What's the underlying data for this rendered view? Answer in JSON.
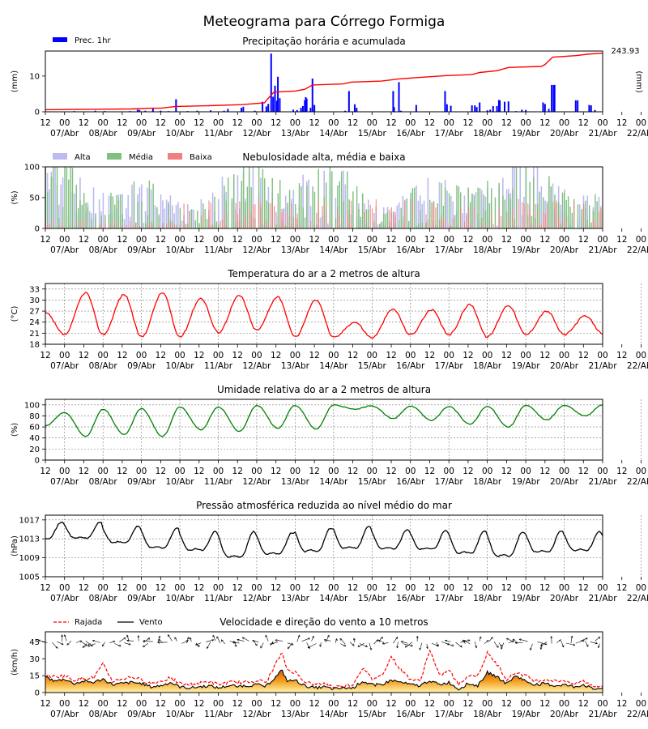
{
  "title": "Meteograma para Córrego Formiga",
  "time_axis": {
    "hour_ticks": [
      "12",
      "00",
      "12",
      "00",
      "12",
      "00",
      "12",
      "00",
      "12",
      "00",
      "12",
      "00",
      "12",
      "00",
      "12",
      "00",
      "12",
      "00",
      "12",
      "00",
      "12",
      "00",
      "12",
      "00",
      "12",
      "00",
      "12",
      "00",
      "12",
      "00",
      "12",
      "00"
    ],
    "day_labels": [
      "07/Abr",
      "08/Abr",
      "09/Abr",
      "10/Abr",
      "11/Abr",
      "12/Abr",
      "13/Abr",
      "14/Abr",
      "15/Abr",
      "16/Abr",
      "17/Abr",
      "18/Abr",
      "19/Abr",
      "20/Abr",
      "21/Abr",
      "22/Abr"
    ]
  },
  "chart_data": [
    {
      "type": "bar",
      "title": "Precipitação horária e acumulada",
      "ylabel": "(mm)",
      "ylabel_right": "(mm)",
      "ylim": [
        0,
        17
      ],
      "yticks": [
        "0",
        "10"
      ],
      "legend": [
        "Prec. 1hr"
      ],
      "legend_placement": "top-left",
      "accumulated_total": "243.93",
      "colors": {
        "bars": "#0000ff",
        "accumulated": "#ff0000"
      },
      "bars": [
        [
          0.5,
          0.1
        ],
        [
          1.5,
          0.2
        ],
        [
          2.1,
          0.1
        ],
        [
          2.6,
          0.3
        ],
        [
          3.1,
          0.2
        ],
        [
          4.4,
          0.2
        ],
        [
          4.8,
          0.6
        ],
        [
          4.9,
          0.5
        ],
        [
          5.2,
          0.3
        ],
        [
          5.6,
          0.9
        ],
        [
          6.0,
          0.3
        ],
        [
          6.4,
          0.2
        ],
        [
          6.8,
          3.5
        ],
        [
          7.4,
          0.2
        ],
        [
          7.9,
          0.3
        ],
        [
          8.6,
          0.4
        ],
        [
          9.3,
          0.3
        ],
        [
          9.5,
          0.8
        ],
        [
          10.2,
          1.1
        ],
        [
          10.3,
          1.4
        ],
        [
          10.9,
          0.3
        ],
        [
          11.3,
          2.8
        ],
        [
          11.5,
          1.5
        ],
        [
          11.6,
          2.2
        ],
        [
          11.75,
          16.3
        ],
        [
          11.85,
          4.2
        ],
        [
          11.95,
          7.3
        ],
        [
          12.05,
          3.1
        ],
        [
          12.1,
          9.8
        ],
        [
          12.2,
          3.8
        ],
        [
          12.9,
          0.6
        ],
        [
          13.1,
          0.5
        ],
        [
          13.3,
          1.1
        ],
        [
          13.4,
          1.6
        ],
        [
          13.5,
          3.2
        ],
        [
          13.55,
          4.1
        ],
        [
          13.6,
          3.7
        ],
        [
          13.8,
          1.1
        ],
        [
          13.9,
          9.3
        ],
        [
          14.0,
          1.9
        ],
        [
          15.6,
          0.3
        ],
        [
          15.8,
          5.8
        ],
        [
          16.1,
          2.1
        ],
        [
          16.2,
          1.1
        ],
        [
          18.1,
          5.8
        ],
        [
          18.15,
          1.3
        ],
        [
          18.4,
          8.3
        ],
        [
          18.5,
          0.3
        ],
        [
          19.3,
          1.9
        ],
        [
          20.8,
          5.8
        ],
        [
          20.9,
          2.1
        ],
        [
          21.1,
          1.7
        ],
        [
          22.2,
          1.8
        ],
        [
          22.35,
          1.8
        ],
        [
          22.45,
          1.3
        ],
        [
          22.6,
          2.6
        ],
        [
          23.0,
          0.4
        ],
        [
          23.15,
          0.6
        ],
        [
          23.3,
          1.6
        ],
        [
          23.5,
          1.6
        ],
        [
          23.6,
          3.3
        ],
        [
          23.65,
          3.2
        ],
        [
          23.9,
          2.8
        ],
        [
          24.1,
          2.9
        ],
        [
          24.5,
          0.2
        ],
        [
          24.8,
          0.6
        ],
        [
          25.0,
          0.5
        ],
        [
          25.9,
          2.6
        ],
        [
          26.0,
          2.2
        ],
        [
          26.2,
          0.8
        ],
        [
          26.35,
          7.5
        ],
        [
          26.45,
          7.5
        ],
        [
          26.5,
          7.5
        ],
        [
          27.6,
          3.2
        ],
        [
          27.7,
          3.2
        ],
        [
          28.3,
          1.9
        ],
        [
          28.4,
          1.8
        ],
        [
          28.6,
          0.5
        ]
      ],
      "accumulated": [
        [
          0,
          0.6
        ],
        [
          4.5,
          0.8
        ],
        [
          5.5,
          1.0
        ],
        [
          6.0,
          1.0
        ],
        [
          6.8,
          1.5
        ],
        [
          8.5,
          1.7
        ],
        [
          10.2,
          2.0
        ],
        [
          11.4,
          2.5
        ],
        [
          11.7,
          4.4
        ],
        [
          11.9,
          5.5
        ],
        [
          13.0,
          5.8
        ],
        [
          13.5,
          6.3
        ],
        [
          13.9,
          7.5
        ],
        [
          15.5,
          7.8
        ],
        [
          15.9,
          8.3
        ],
        [
          17.5,
          8.6
        ],
        [
          18.4,
          9.2
        ],
        [
          19.5,
          9.6
        ],
        [
          20.8,
          10.1
        ],
        [
          22.2,
          10.4
        ],
        [
          22.6,
          11.0
        ],
        [
          23.5,
          11.5
        ],
        [
          24.1,
          12.4
        ],
        [
          25.8,
          12.7
        ],
        [
          26.0,
          13.2
        ],
        [
          26.4,
          15.3
        ],
        [
          27.6,
          15.7
        ],
        [
          28.2,
          16.1
        ],
        [
          29,
          16.4
        ]
      ]
    },
    {
      "type": "bar",
      "title": "Nebulosidade alta, média e baixa",
      "ylabel": "(%)",
      "ylim": [
        0,
        100
      ],
      "yticks": [
        "0",
        "50",
        "100"
      ],
      "series": [
        {
          "name": "Alta",
          "color": "#bbbbf0"
        },
        {
          "name": "Média",
          "color": "#7fbf7f"
        },
        {
          "name": "Baixa",
          "color": "#f08080"
        }
      ],
      "legend_placement": "top-left"
    },
    {
      "type": "line",
      "title": "Temperatura do ar a 2 metros de altura",
      "ylabel": "(°C)",
      "ylim": [
        18,
        34.5
      ],
      "yticks": [
        "18",
        "21",
        "24",
        "27",
        "30",
        "33"
      ],
      "color": "#ff0000",
      "days": 15,
      "daily_min": [
        20.6,
        20.6,
        20.0,
        20.0,
        21.2,
        21.8,
        20.0,
        19.8,
        19.8,
        20.6,
        20.6,
        20.0,
        20.6,
        20.6,
        21.0
      ],
      "daily_max": [
        32.0,
        31.5,
        32.0,
        30.5,
        31.2,
        30.9,
        30.1,
        24.0,
        27.5,
        27.3,
        28.8,
        28.6,
        27.0,
        25.6,
        27.5
      ],
      "start": 26.5
    },
    {
      "type": "line",
      "title": "Umidade relativa do ar a 2 metros de altura",
      "ylabel": "(%)",
      "ylim": [
        0,
        110
      ],
      "yticks": [
        "0",
        "20",
        "40",
        "60",
        "80",
        "100"
      ],
      "color": "#008000",
      "days": 15,
      "daily_min": [
        43,
        46,
        43,
        55,
        52,
        58,
        56,
        92,
        75,
        72,
        65,
        60,
        73,
        80,
        72
      ],
      "daily_max": [
        86,
        92,
        93,
        96,
        96,
        99,
        99,
        100,
        98,
        98,
        97,
        97,
        99,
        99,
        100
      ],
      "start": 62
    },
    {
      "type": "line",
      "title": "Pressão atmosférica reduzida ao nível médio do mar",
      "ylabel": "(hPa)",
      "ylim": [
        1005,
        1018
      ],
      "yticks": [
        "1005",
        "1009",
        "1013",
        "1017"
      ],
      "color": "#000000",
      "days": 15,
      "daily_min": [
        1012.0,
        1011.0,
        1009.7,
        1009.3,
        1007.3,
        1008.3,
        1008.7,
        1009.5,
        1009.6,
        1009.5,
        1008.3,
        1007.6,
        1008.7,
        1009.2,
        1007.6
      ],
      "daily_max": [
        1016.5,
        1015.7,
        1015.3,
        1014.5,
        1014.5,
        1014.3,
        1015.2,
        1015.7,
        1015.0,
        1014.8,
        1014.7,
        1014.5,
        1014.7,
        1014.5,
        1014.5
      ],
      "start": 1016.7
    },
    {
      "type": "area",
      "title": "Velocidade e direção do vento a 10 metros",
      "ylabel": "(km/h)",
      "ylim": [
        0,
        54
      ],
      "yticks": [
        "0",
        "15",
        "30",
        "45"
      ],
      "series": [
        {
          "name": "Rajada",
          "color": "#ff0000"
        },
        {
          "name": "Vento",
          "color": "#000000"
        }
      ],
      "legend_placement": "top-left",
      "wind_nodes": [
        [
          0,
          14
        ],
        [
          0.5,
          10
        ],
        [
          1.0,
          12
        ],
        [
          1.5,
          8
        ],
        [
          2.0,
          10
        ],
        [
          2.5,
          9
        ],
        [
          3.0,
          12
        ],
        [
          3.5,
          7
        ],
        [
          4.0,
          8
        ],
        [
          4.5,
          9
        ],
        [
          5.0,
          8
        ],
        [
          5.5,
          5
        ],
        [
          6.0,
          6
        ],
        [
          6.5,
          9
        ],
        [
          7.0,
          5
        ],
        [
          7.5,
          4
        ],
        [
          8.0,
          5
        ],
        [
          8.5,
          6
        ],
        [
          9.0,
          4
        ],
        [
          9.5,
          6
        ],
        [
          10.0,
          6
        ],
        [
          10.5,
          6
        ],
        [
          11.0,
          7
        ],
        [
          11.5,
          6
        ],
        [
          12.0,
          14
        ],
        [
          12.3,
          20
        ],
        [
          12.6,
          10
        ],
        [
          13.0,
          11
        ],
        [
          13.5,
          6
        ],
        [
          14.0,
          4
        ],
        [
          14.5,
          5
        ],
        [
          15.0,
          3
        ],
        [
          15.5,
          4
        ],
        [
          16.0,
          4
        ],
        [
          16.5,
          10
        ],
        [
          17.0,
          7
        ],
        [
          17.5,
          7
        ],
        [
          18.0,
          11
        ],
        [
          18.5,
          9
        ],
        [
          19.0,
          7
        ],
        [
          19.5,
          6
        ],
        [
          20.0,
          11
        ],
        [
          20.5,
          7
        ],
        [
          21.0,
          9
        ],
        [
          21.5,
          3
        ],
        [
          22.0,
          8
        ],
        [
          22.5,
          6
        ],
        [
          23.0,
          18
        ],
        [
          23.5,
          14
        ],
        [
          24.0,
          8
        ],
        [
          24.5,
          15
        ],
        [
          25.0,
          10
        ],
        [
          25.5,
          7
        ],
        [
          26.0,
          8
        ],
        [
          26.5,
          6
        ],
        [
          27.0,
          7
        ],
        [
          27.5,
          5
        ],
        [
          28.0,
          7
        ],
        [
          28.5,
          3
        ],
        [
          29,
          4
        ]
      ],
      "gust_nodes": [
        [
          0,
          15
        ],
        [
          0.5,
          14
        ],
        [
          1.0,
          15
        ],
        [
          1.5,
          11
        ],
        [
          2.0,
          13
        ],
        [
          2.5,
          13
        ],
        [
          3.0,
          25
        ],
        [
          3.5,
          10
        ],
        [
          4.0,
          12
        ],
        [
          4.5,
          14
        ],
        [
          5.0,
          11
        ],
        [
          5.5,
          8
        ],
        [
          6.0,
          10
        ],
        [
          6.5,
          13
        ],
        [
          7.0,
          8
        ],
        [
          7.5,
          7
        ],
        [
          8.0,
          8
        ],
        [
          8.5,
          10
        ],
        [
          9.0,
          7
        ],
        [
          9.5,
          9
        ],
        [
          10.0,
          9
        ],
        [
          10.5,
          9
        ],
        [
          11.0,
          11
        ],
        [
          11.5,
          9
        ],
        [
          12.0,
          26
        ],
        [
          12.3,
          35
        ],
        [
          12.6,
          20
        ],
        [
          13.0,
          18
        ],
        [
          13.5,
          10
        ],
        [
          14.0,
          7
        ],
        [
          14.5,
          8
        ],
        [
          15.0,
          5
        ],
        [
          15.5,
          6
        ],
        [
          16.0,
          7
        ],
        [
          16.5,
          22
        ],
        [
          17.0,
          12
        ],
        [
          17.5,
          15
        ],
        [
          18.0,
          32
        ],
        [
          18.5,
          20
        ],
        [
          19.0,
          12
        ],
        [
          19.5,
          10
        ],
        [
          20.0,
          38
        ],
        [
          20.5,
          15
        ],
        [
          21.0,
          20
        ],
        [
          21.5,
          7
        ],
        [
          22.0,
          15
        ],
        [
          22.5,
          15
        ],
        [
          23.0,
          35
        ],
        [
          23.5,
          25
        ],
        [
          24.0,
          12
        ],
        [
          24.5,
          18
        ],
        [
          25.0,
          15
        ],
        [
          25.5,
          10
        ],
        [
          26.0,
          12
        ],
        [
          26.5,
          10
        ],
        [
          27.0,
          11
        ],
        [
          27.5,
          8
        ],
        [
          28.0,
          10
        ],
        [
          28.5,
          6
        ],
        [
          29,
          6
        ]
      ]
    }
  ]
}
